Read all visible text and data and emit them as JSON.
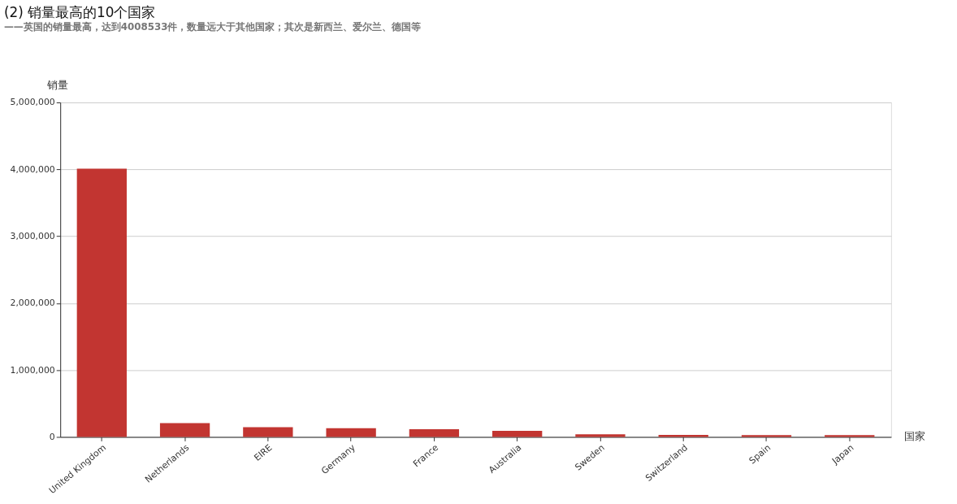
{
  "chart_data": {
    "type": "bar",
    "title": "(2) 销量最高的10个国家",
    "subtitle": "——英国的销量最高，达到4008533件，数量远大于其他国家；其次是新西兰、爱尔兰、德国等",
    "xlabel": "国家",
    "ylabel": "销量",
    "categories": [
      "United Kingdom",
      "Netherlands",
      "EIRE",
      "Germany",
      "France",
      "Australia",
      "Sweden",
      "Switzerland",
      "Spain",
      "Japan"
    ],
    "values": [
      4008533,
      205000,
      147000,
      131000,
      116000,
      92000,
      38000,
      31000,
      27000,
      26000
    ],
    "color": "#c23531",
    "ylim": [
      0,
      5000000
    ],
    "yticks": [
      0,
      {
        "value": 1000000,
        "label": "1,000,000"
      },
      {
        "value": 2000000,
        "label": "2,000,000"
      },
      {
        "value": 3000000,
        "label": "3,000,000"
      },
      {
        "value": 4000000,
        "label": "4,000,000"
      },
      {
        "value": 5000000,
        "label": "5,000,000"
      }
    ],
    "grid": "y"
  }
}
